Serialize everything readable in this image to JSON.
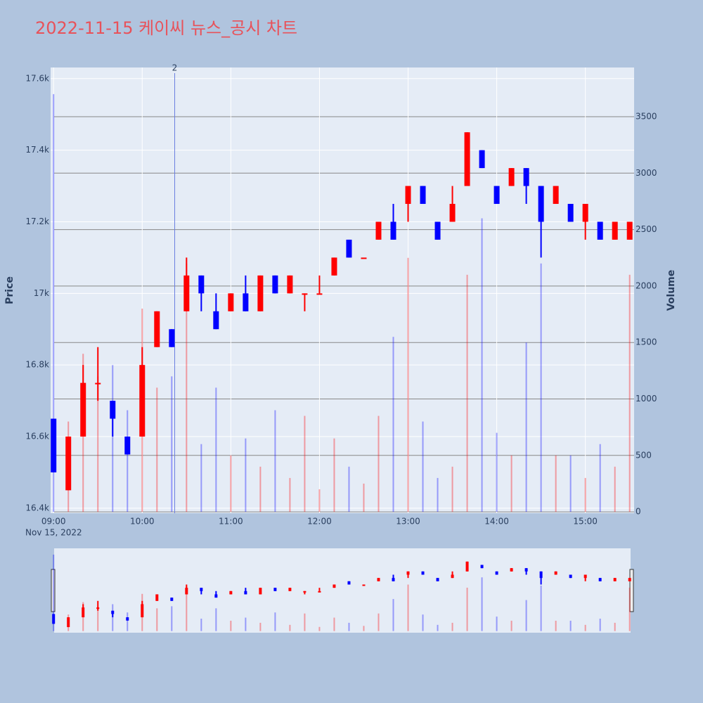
{
  "chart_data": {
    "type": "candlestick",
    "title": "2022-11-15 케이씨 뉴스_공시 차트",
    "x": [
      "09:00",
      "09:10",
      "09:20",
      "09:30",
      "09:40",
      "09:50",
      "10:00",
      "10:10",
      "10:20",
      "10:30",
      "10:40",
      "10:50",
      "11:00",
      "11:10",
      "11:20",
      "11:30",
      "11:40",
      "11:50",
      "12:00",
      "12:10",
      "12:20",
      "12:30",
      "12:40",
      "12:50",
      "13:00",
      "13:10",
      "13:20",
      "13:30",
      "13:40",
      "13:50",
      "14:00",
      "14:10",
      "14:20",
      "14:30",
      "14:40",
      "14:50",
      "15:00",
      "15:10",
      "15:20",
      "15:30"
    ],
    "open": [
      16650,
      16450,
      16600,
      16750,
      16700,
      16600,
      16600,
      16850,
      16900,
      16950,
      17050,
      16950,
      16950,
      17000,
      16950,
      17050,
      17000,
      17000,
      17000,
      17050,
      17150,
      17100,
      17150,
      17200,
      17250,
      17300,
      17200,
      17200,
      17300,
      17400,
      17300,
      17300,
      17350,
      17300,
      17250,
      17250,
      17200,
      17200,
      17150,
      17150
    ],
    "high": [
      16650,
      16600,
      16800,
      16850,
      16700,
      16600,
      16850,
      16950,
      16900,
      17100,
      17050,
      17000,
      17000,
      17050,
      17050,
      17050,
      17050,
      17000,
      17050,
      17100,
      17150,
      17100,
      17200,
      17250,
      17300,
      17300,
      17200,
      17300,
      17450,
      17400,
      17300,
      17350,
      17350,
      17300,
      17300,
      17250,
      17250,
      17200,
      17200,
      17200
    ],
    "low": [
      16500,
      16450,
      16600,
      16700,
      16600,
      16550,
      16600,
      16850,
      16850,
      16950,
      16950,
      16900,
      16950,
      16950,
      16950,
      17000,
      17000,
      16950,
      17000,
      17050,
      17100,
      17100,
      17150,
      17150,
      17200,
      17250,
      17150,
      17200,
      17300,
      17350,
      17250,
      17300,
      17250,
      17100,
      17250,
      17200,
      17150,
      17150,
      17150,
      17150
    ],
    "close": [
      16500,
      16600,
      16750,
      16750,
      16650,
      16550,
      16800,
      16950,
      16850,
      17050,
      17000,
      16900,
      17000,
      16950,
      17050,
      17000,
      17050,
      17000,
      17000,
      17100,
      17100,
      17100,
      17200,
      17150,
      17300,
      17250,
      17150,
      17250,
      17450,
      17350,
      17250,
      17350,
      17300,
      17200,
      17300,
      17200,
      17250,
      17150,
      17200,
      17200
    ],
    "volume": [
      3700,
      800,
      1400,
      1200,
      1300,
      900,
      1800,
      1100,
      1200,
      2200,
      600,
      1100,
      500,
      650,
      400,
      900,
      300,
      850,
      200,
      650,
      400,
      250,
      850,
      1550,
      2250,
      800,
      300,
      400,
      2100,
      2600,
      700,
      500,
      1500,
      2200,
      500,
      500,
      300,
      600,
      400,
      2100
    ],
    "increasing_color": "#ff0000",
    "decreasing_color": "#0000ff",
    "xlim": [
      "08:58",
      "15:33"
    ],
    "xticks": [
      "09:00",
      "10:00",
      "11:00",
      "12:00",
      "13:00",
      "14:00",
      "15:00"
    ],
    "x_date_label": "Nov 15, 2022",
    "ylim": [
      16386,
      17631
    ],
    "yticks": [
      {
        "value": 16400,
        "label": "16.4k"
      },
      {
        "value": 16600,
        "label": "16.6k"
      },
      {
        "value": 16800,
        "label": "16.8k"
      },
      {
        "value": 17000,
        "label": "17k"
      },
      {
        "value": 17200,
        "label": "17.2k"
      },
      {
        "value": 17400,
        "label": "17.4k"
      },
      {
        "value": 17600,
        "label": "17.6k"
      }
    ],
    "y2lim": [
      -12,
      3936
    ],
    "y2ticks": [
      0,
      500,
      1000,
      1500,
      2000,
      2500,
      3000,
      3500
    ],
    "yaxis_title": "Price",
    "y2axis_title": "Volume",
    "annotation": {
      "x": "10:22",
      "text": "2"
    },
    "rangeslider": true
  }
}
